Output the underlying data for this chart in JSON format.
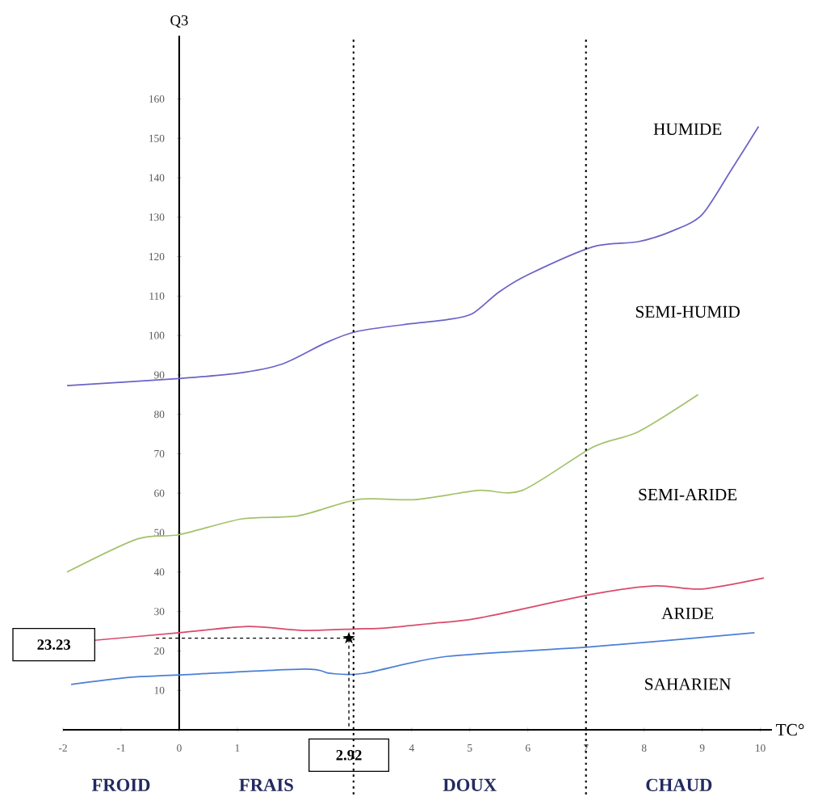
{
  "chart_data": {
    "type": "line",
    "xlabel": "TC°",
    "ylabel": "Q3",
    "xlim": [
      -2,
      10.2
    ],
    "ylim": [
      0,
      176
    ],
    "xticks": [
      -2,
      -1,
      0,
      1,
      4,
      5,
      6,
      7,
      8,
      9,
      10
    ],
    "yticks": [
      10,
      20,
      30,
      40,
      50,
      60,
      70,
      80,
      90,
      100,
      110,
      120,
      130,
      140,
      150,
      160
    ],
    "grid": false,
    "marker": "none",
    "line_style": "solid",
    "series": [
      {
        "color": "#6b63c6",
        "x": [
          -1.93,
          0,
          1,
          1.78,
          2.5,
          3.05,
          4,
          4.6,
          5.04,
          5.5,
          6,
          7.12,
          7.9,
          8.5,
          9,
          9.5,
          9.97
        ],
        "values": [
          87.3,
          89.1,
          90.4,
          92.8,
          98,
          101,
          103,
          104,
          105.5,
          111,
          115.4,
          122.5,
          123.8,
          126.6,
          130.7,
          142,
          153
        ]
      },
      {
        "color": "#a3c26b",
        "x": [
          -1.93,
          -0.72,
          0,
          1.08,
          2.06,
          3.07,
          4.07,
          5.14,
          5.9,
          7.12,
          7.9,
          8.93
        ],
        "values": [
          40,
          48.4,
          49.5,
          53.5,
          54.3,
          58.4,
          58.4,
          60.7,
          60.7,
          71.7,
          75.6,
          85
        ]
      },
      {
        "color": "#d94a6a",
        "x": [
          -1.46,
          0,
          1.18,
          2.15,
          3.07,
          3.54,
          4.35,
          5.14,
          7.12,
          8.19,
          8.99,
          10.06
        ],
        "values": [
          22.7,
          24.6,
          26.2,
          25.2,
          25.6,
          25.8,
          27,
          28.3,
          34.4,
          36.5,
          35.7,
          38.5
        ]
      },
      {
        "color": "#4a7fd6",
        "x": [
          -1.86,
          -0.86,
          0,
          2.15,
          2.6,
          3.17,
          4.6,
          7.12,
          9.9
        ],
        "values": [
          11.5,
          13.3,
          13.9,
          15.4,
          14.3,
          14.3,
          18.6,
          21.1,
          24.6
        ]
      },
      {
        "color": "#000000",
        "line_style": "dashed",
        "x": [
          -0.4,
          2.92,
          2.92
        ],
        "values": [
          23.23,
          23.23,
          0
        ]
      },
      {
        "type": "scatter",
        "color": "#000000",
        "marker": "star",
        "x": [
          2.92
        ],
        "values": [
          23.23
        ]
      }
    ],
    "ref_lines": [
      {
        "axis": "x",
        "value": 3,
        "line_style": "dotted"
      },
      {
        "axis": "x",
        "value": 7,
        "line_style": "dotted"
      }
    ],
    "annotations": [
      "HUMIDE",
      "SEMI-HUMID",
      "SEMI-ARIDE",
      "ARIDE",
      "SAHARIEN",
      "FROID",
      "FRAIS",
      "DOUX",
      "CHAUD",
      "23.23",
      "2.92"
    ]
  }
}
